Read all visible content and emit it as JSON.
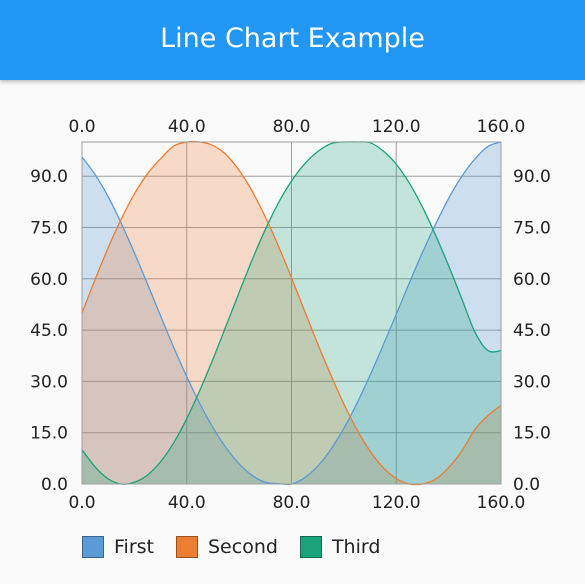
{
  "app_title": "Line Chart Example",
  "chart_data": {
    "type": "area",
    "title": "",
    "xlabel": "",
    "ylabel": "",
    "xlim": [
      0,
      160
    ],
    "ylim": [
      0,
      100
    ],
    "x_ticks": [
      "0.0",
      "40.0",
      "80.0",
      "120.0",
      "160.0"
    ],
    "y_ticks": [
      "0.0",
      "15.0",
      "30.0",
      "45.0",
      "60.0",
      "75.0",
      "90.0"
    ],
    "x_tick_values": [
      0,
      40,
      80,
      120,
      160
    ],
    "y_tick_values": [
      0,
      15,
      30,
      45,
      60,
      75,
      90
    ],
    "grid": true,
    "legend_position": "bottom-left",
    "x": [
      0,
      5,
      10,
      15,
      20,
      25,
      30,
      35,
      40,
      45,
      50,
      55,
      60,
      65,
      70,
      75,
      80,
      85,
      90,
      95,
      100,
      105,
      110,
      115,
      120,
      125,
      130,
      135,
      140,
      145,
      150,
      155,
      160
    ],
    "series": [
      {
        "name": "First",
        "color": "#5b9bd5",
        "fill": "rgba(91,155,213,0.28)",
        "values": [
          95.6,
          90.5,
          84.0,
          76.2,
          67.6,
          58.5,
          49.2,
          40.0,
          31.4,
          23.5,
          16.5,
          10.6,
          5.9,
          2.5,
          0.5,
          0.1,
          0.0,
          1.8,
          5.2,
          10.1,
          16.3,
          23.6,
          31.8,
          40.6,
          49.6,
          58.8,
          67.7,
          75.9,
          83.5,
          89.9,
          95.0,
          98.7,
          100.0
        ]
      },
      {
        "name": "Second",
        "color": "#ed7d31",
        "fill": "rgba(237,125,49,0.26)",
        "values": [
          50.0,
          59.8,
          69.1,
          77.5,
          84.8,
          90.7,
          95.1,
          98.8,
          100.0,
          100.0,
          99.0,
          96.3,
          91.7,
          85.6,
          78.1,
          69.6,
          60.3,
          50.6,
          41.0,
          31.9,
          23.4,
          15.9,
          9.6,
          4.8,
          1.6,
          0.0,
          0.0,
          1.4,
          4.8,
          9.6,
          15.9,
          20.0,
          23.0
        ]
      },
      {
        "name": "Third",
        "color": "#1aa37a",
        "fill": "rgba(26,163,122,0.25)",
        "values": [
          10.0,
          5.0,
          1.5,
          0.0,
          0.5,
          2.6,
          6.5,
          12.0,
          19.1,
          27.4,
          36.5,
          46.2,
          56.0,
          65.6,
          74.4,
          82.2,
          88.6,
          93.6,
          97.2,
          99.5,
          100.0,
          100.0,
          99.8,
          97.4,
          93.5,
          88.0,
          81.0,
          72.8,
          63.8,
          54.2,
          44.5,
          39.0,
          39.0
        ]
      }
    ]
  }
}
